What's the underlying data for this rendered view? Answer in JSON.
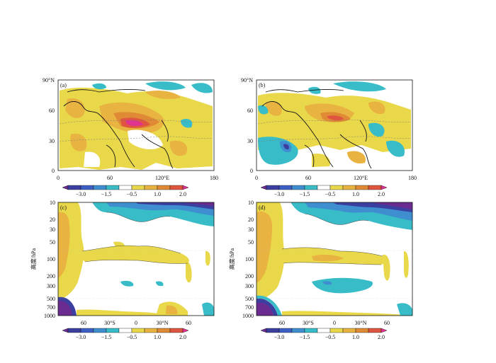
{
  "figure": {
    "panels": [
      {
        "id": "a",
        "label": "(a)",
        "type": "map",
        "x_ticks": [
          "0",
          "60",
          "120°E",
          "180"
        ],
        "y_ticks": [
          "0",
          "30",
          "60",
          "90°N"
        ],
        "x_range": [
          0,
          180
        ],
        "y_range": [
          0,
          90
        ]
      },
      {
        "id": "b",
        "label": "(b)",
        "type": "map",
        "x_ticks": [
          "0",
          "60",
          "120°E",
          "180"
        ],
        "y_ticks": [
          "0",
          "30",
          "60",
          "90°N"
        ],
        "x_range": [
          0,
          180
        ],
        "y_range": [
          0,
          90
        ]
      },
      {
        "id": "c",
        "label": "(c)",
        "type": "cross-section",
        "x_ticks": [
          "60",
          "30°S",
          "0",
          "30°N",
          "60"
        ],
        "y_ticks": [
          "10",
          "20",
          "30",
          "50",
          "100",
          "200",
          "300",
          "500",
          "700",
          "1000"
        ],
        "ylabel": "高度/hPa",
        "y_scale": "log-pressure"
      },
      {
        "id": "d",
        "label": "(d)",
        "type": "cross-section",
        "x_ticks": [
          "60",
          "30°S",
          "0",
          "30°N",
          "60"
        ],
        "y_ticks": [
          "10",
          "20",
          "30",
          "50",
          "100",
          "200",
          "300",
          "500",
          "700",
          "1000"
        ],
        "ylabel": "高度/hPa",
        "y_scale": "log-pressure"
      }
    ],
    "colorbar": {
      "labels": [
        "−3.0",
        "−1.5",
        "−0.5",
        "1.0",
        "2.0"
      ],
      "bins": [
        {
          "value": "<-3.0",
          "color": "#6a2c91"
        },
        {
          "value": "-3.0",
          "color": "#3a3fa0"
        },
        {
          "value": "-2.0",
          "color": "#3d5fc4"
        },
        {
          "value": "-1.5",
          "color": "#3f8fd0"
        },
        {
          "value": "-1.0",
          "color": "#37bcc8"
        },
        {
          "value": "-0.5",
          "color": "#ffffff"
        },
        {
          "value": "0.5",
          "color": "#e9d84a"
        },
        {
          "value": "1.0",
          "color": "#e8b340"
        },
        {
          "value": "1.5",
          "color": "#e08a35"
        },
        {
          "value": "2.0",
          "color": "#e0553f"
        },
        {
          "value": ">2.0",
          "color": "#e0338f"
        }
      ]
    },
    "colors": {
      "purple": "#6a2c91",
      "dark_blue": "#3a3fa0",
      "blue": "#3f8fd0",
      "cyan": "#37bcc8",
      "light_yellow": "#e9d84a",
      "orange_yellow": "#e8b340",
      "orange": "#e08a35",
      "red": "#e0553f",
      "magenta": "#e0338f"
    }
  },
  "chart_data": [
    {
      "type": "heatmap",
      "panel": "a",
      "xlim": [
        0,
        180
      ],
      "ylim": [
        0,
        90
      ],
      "xlabel": "",
      "ylabel": "",
      "ticks_x": [
        "0",
        "60",
        "120°E",
        "180"
      ],
      "ticks_y": [
        "0",
        "30",
        "60",
        "90°N"
      ]
    },
    {
      "type": "heatmap",
      "panel": "b",
      "xlim": [
        0,
        180
      ],
      "ylim": [
        0,
        90
      ],
      "xlabel": "",
      "ylabel": "",
      "ticks_x": [
        "0",
        "60",
        "120°E",
        "180"
      ],
      "ticks_y": [
        "0",
        "30",
        "60",
        "90°N"
      ]
    },
    {
      "type": "heatmap",
      "panel": "c",
      "xlabel": "",
      "ylabel": "高度/hPa",
      "ticks_x": [
        "60",
        "30°S",
        "0",
        "30°N",
        "60"
      ],
      "ticks_y": [
        10,
        20,
        30,
        50,
        100,
        200,
        300,
        500,
        700,
        1000
      ],
      "ylim": [
        1000,
        10
      ]
    },
    {
      "type": "heatmap",
      "panel": "d",
      "xlabel": "",
      "ylabel": "高度/hPa",
      "ticks_x": [
        "60",
        "30°S",
        "0",
        "30°N",
        "60"
      ],
      "ticks_y": [
        10,
        20,
        30,
        50,
        100,
        200,
        300,
        500,
        700,
        1000
      ],
      "ylim": [
        1000,
        10
      ]
    }
  ]
}
